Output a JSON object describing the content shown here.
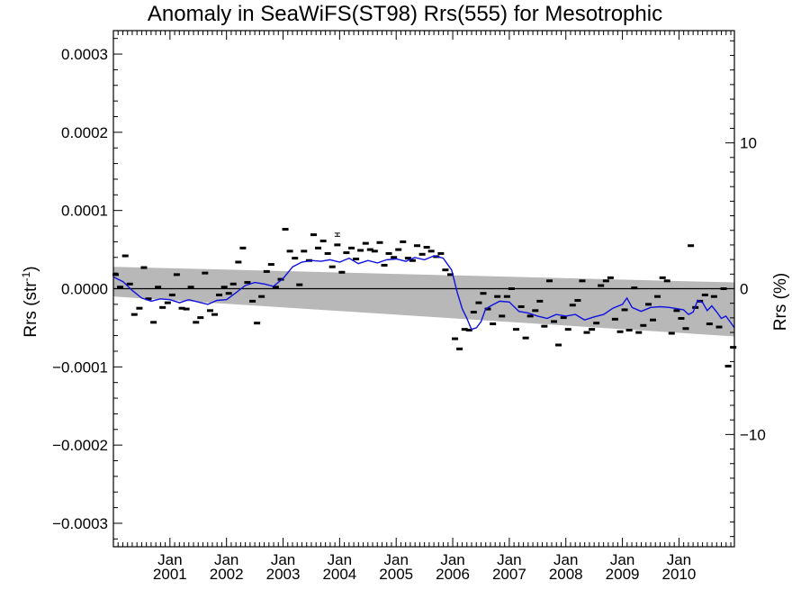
{
  "chart_data": {
    "type": "line",
    "title": "Anomaly in SeaWiFS(ST98) Rrs(555) for Mesotrophic",
    "ylabel_left": "Rrs (str",
    "ylabel_left_sup": "-1",
    "ylabel_left_close": ")",
    "ylabel_right": "Rrs (%)",
    "ylim": [
      -0.00033,
      0.00033
    ],
    "y2lim": [
      -17.7,
      17.7
    ],
    "xlim": [
      2000.0,
      2010.98
    ],
    "yticks_left": [
      {
        "v": 0.0003,
        "label": "0.0003"
      },
      {
        "v": 0.0002,
        "label": "0.0002"
      },
      {
        "v": 0.0001,
        "label": "0.0001"
      },
      {
        "v": 0.0,
        "label": "0.0000"
      },
      {
        "v": -0.0001,
        "label": "−0.0001"
      },
      {
        "v": -0.0002,
        "label": "−0.0002"
      },
      {
        "v": -0.0003,
        "label": "−0.0003"
      }
    ],
    "yticks_right": [
      {
        "v": 10,
        "label": "10"
      },
      {
        "v": 0,
        "label": "0"
      },
      {
        "v": -10,
        "label": "−10"
      }
    ],
    "xticks": [
      {
        "v": 2001.0,
        "label1": "Jan",
        "label2": "2001"
      },
      {
        "v": 2002.0,
        "label1": "Jan",
        "label2": "2002"
      },
      {
        "v": 2003.0,
        "label1": "Jan",
        "label2": "2003"
      },
      {
        "v": 2004.0,
        "label1": "Jan",
        "label2": "2004"
      },
      {
        "v": 2005.0,
        "label1": "Jan",
        "label2": "2005"
      },
      {
        "v": 2006.0,
        "label1": "Jan",
        "label2": "2006"
      },
      {
        "v": 2007.0,
        "label1": "Jan",
        "label2": "2007"
      },
      {
        "v": 2008.0,
        "label1": "Jan",
        "label2": "2008"
      },
      {
        "v": 2009.0,
        "label1": "Jan",
        "label2": "2009"
      },
      {
        "v": 2010.0,
        "label1": "Jan",
        "label2": "2010"
      }
    ],
    "band": {
      "color": "#b8b8b8",
      "x": [
        2000.0,
        2010.98
      ],
      "upper": [
        2.8e-05,
        8e-06
      ],
      "lower": [
        -1e-05,
        -6.1e-05
      ]
    },
    "zero_line": 0,
    "series": [
      {
        "kind": "markers",
        "color": "#000000",
        "x": [
          2000.04,
          2000.12,
          2000.21,
          2000.29,
          2000.37,
          2000.46,
          2000.54,
          2000.62,
          2000.71,
          2000.79,
          2000.87,
          2000.96,
          2001.04,
          2001.12,
          2001.21,
          2001.29,
          2001.37,
          2001.46,
          2001.54,
          2001.62,
          2001.71,
          2001.79,
          2001.87,
          2001.96,
          2002.04,
          2002.12,
          2002.21,
          2002.29,
          2002.37,
          2002.46,
          2002.54,
          2002.62,
          2002.71,
          2002.79,
          2002.87,
          2002.96,
          2003.04,
          2003.12,
          2003.21,
          2003.29,
          2003.37,
          2003.46,
          2003.54,
          2003.62,
          2003.71,
          2003.79,
          2003.87,
          2003.96,
          2004.04,
          2004.12,
          2004.21,
          2004.29,
          2004.37,
          2004.46,
          2004.54,
          2004.62,
          2004.71,
          2004.79,
          2004.87,
          2004.96,
          2005.04,
          2005.12,
          2005.21,
          2005.29,
          2005.37,
          2005.46,
          2005.54,
          2005.62,
          2005.71,
          2005.79,
          2005.87,
          2005.96,
          2006.04,
          2006.12,
          2006.21,
          2006.29,
          2006.37,
          2006.46,
          2006.54,
          2006.62,
          2006.71,
          2006.79,
          2006.87,
          2006.96,
          2007.04,
          2007.12,
          2007.21,
          2007.29,
          2007.37,
          2007.46,
          2007.54,
          2007.62,
          2007.71,
          2007.79,
          2007.87,
          2007.96,
          2008.04,
          2008.12,
          2008.21,
          2008.29,
          2008.37,
          2008.46,
          2008.54,
          2008.62,
          2008.71,
          2008.79,
          2008.87,
          2008.96,
          2009.04,
          2009.12,
          2009.21,
          2009.29,
          2009.37,
          2009.46,
          2009.54,
          2009.62,
          2009.71,
          2009.79,
          2009.87,
          2009.96,
          2010.04,
          2010.12,
          2010.21,
          2010.29,
          2010.37,
          2010.46,
          2010.54,
          2010.62,
          2010.71,
          2010.79,
          2010.87,
          2010.96
        ],
        "y": [
          1.8e-05,
          2e-06,
          4.2e-05,
          6e-06,
          -3.3e-05,
          -2.5e-05,
          2.7e-05,
          -1.3e-05,
          -4.3e-05,
          2e-06,
          -2.4e-05,
          -1.8e-05,
          -8e-06,
          1.8e-05,
          -2.5e-05,
          -2.6e-05,
          2e-06,
          -4.3e-05,
          -3.7e-05,
          2e-05,
          -2.8e-05,
          -3.3e-05,
          -8e-06,
          2e-06,
          -6e-06,
          6e-06,
          3.4e-05,
          5.2e-05,
          8e-06,
          -1.6e-05,
          -4.4e-05,
          -1e-05,
          2.2e-05,
          3.1e-05,
          2e-06,
          1.2e-05,
          7.6e-05,
          4.8e-05,
          3.9e-05,
          5e-06,
          4.8e-05,
          3.6e-05,
          6.9e-05,
          5.2e-05,
          6.1e-05,
          4.5e-05,
          2.8e-05,
          5.6e-05,
          2.1e-05,
          4.6e-05,
          5.2e-05,
          3.8e-05,
          4.9e-05,
          5.8e-05,
          5e-05,
          4.8e-05,
          5.9e-05,
          3e-05,
          4.5e-05,
          4e-05,
          5e-05,
          6e-05,
          3.9e-05,
          3.6e-05,
          5.5e-05,
          4.4e-05,
          5.3e-05,
          4.8e-05,
          4.1e-05,
          4.5e-05,
          2.4e-05,
          1.8e-05,
          -6.4e-05,
          -7.7e-05,
          -5.2e-05,
          -5.3e-05,
          -3e-05,
          -1.8e-05,
          -6e-06,
          -2.6e-05,
          -4.5e-05,
          -1e-05,
          -3.5e-05,
          -1e-05,
          0.0,
          -5.2e-05,
          -2.3e-05,
          -6.3e-05,
          -3.5e-05,
          -2.8e-05,
          -1.6e-05,
          -4.8e-05,
          1e-05,
          -4.2e-05,
          -7.2e-05,
          -3.7e-05,
          -5.2e-05,
          -2.1e-05,
          -1.5e-05,
          1e-05,
          -5.6e-05,
          -5.2e-05,
          -4.4e-05,
          4e-06,
          1e-05,
          1.4e-05,
          -3.9e-05,
          -5.5e-05,
          -2.7e-05,
          -5.3e-05,
          1e-06,
          -5.6e-05,
          -4.7e-05,
          -2e-05,
          -4e-05,
          -1e-05,
          1.4e-05,
          1e-05,
          -5.7e-05,
          -2.8e-05,
          -3.8e-05,
          -5.1e-05,
          5.5e-05,
          -2.4e-05,
          -1.6e-05,
          -8e-06,
          -4.5e-05,
          -1e-05,
          -4.9e-05,
          0.0,
          -9.9e-05,
          -7.5e-05
        ]
      },
      {
        "kind": "line",
        "color": "#1010e0",
        "x": [
          2000.0,
          2000.17,
          2000.33,
          2000.5,
          2000.67,
          2000.83,
          2001.0,
          2001.17,
          2001.33,
          2001.5,
          2001.67,
          2001.83,
          2002.0,
          2002.17,
          2002.33,
          2002.5,
          2002.67,
          2002.83,
          2003.0,
          2003.17,
          2003.33,
          2003.5,
          2003.67,
          2003.83,
          2004.0,
          2004.17,
          2004.33,
          2004.5,
          2004.67,
          2004.83,
          2005.0,
          2005.17,
          2005.33,
          2005.5,
          2005.67,
          2005.83,
          2005.98,
          2006.08,
          2006.17,
          2006.25,
          2006.33,
          2006.42,
          2006.5,
          2006.58,
          2006.67,
          2006.83,
          2007.0,
          2007.17,
          2007.33,
          2007.5,
          2007.67,
          2007.83,
          2008.0,
          2008.17,
          2008.33,
          2008.5,
          2008.67,
          2008.83,
          2009.0,
          2009.08,
          2009.17,
          2009.33,
          2009.5,
          2009.67,
          2009.83,
          2010.0,
          2010.08,
          2010.17,
          2010.25,
          2010.33,
          2010.42,
          2010.5,
          2010.58,
          2010.67,
          2010.75,
          2010.83,
          2010.98
        ],
        "y": [
          1.5e-05,
          9e-06,
          -2e-06,
          -1.2e-05,
          -1.6e-05,
          -1.3e-05,
          -1.4e-05,
          -1.8e-05,
          -1.4e-05,
          -1.7e-05,
          -2e-05,
          -1.5e-05,
          -1.4e-05,
          -5e-06,
          4e-06,
          8e-06,
          6e-06,
          3e-06,
          1.3e-05,
          2.8e-05,
          3.4e-05,
          3.6e-05,
          3.5e-05,
          3.7e-05,
          3.4e-05,
          3.9e-05,
          3.2e-05,
          3.6e-05,
          3.3e-05,
          3.7e-05,
          3.8e-05,
          3.5e-05,
          4e-05,
          3.7e-05,
          4.2e-05,
          3.9e-05,
          2.4e-05,
          -5e-06,
          -2.6e-05,
          -3.8e-05,
          -5.2e-05,
          -5e-05,
          -4.2e-05,
          -2.6e-05,
          -2.2e-05,
          -1.6e-05,
          -1.7e-05,
          -2.9e-05,
          -3.1e-05,
          -3.5e-05,
          -3.8e-05,
          -3.3e-05,
          -3.5e-05,
          -3.3e-05,
          -4e-05,
          -3.6e-05,
          -3.3e-05,
          -2.5e-05,
          -2e-05,
          -1.2e-05,
          -2.4e-05,
          -2.9e-05,
          -2.4e-05,
          -2.3e-05,
          -2.4e-05,
          -2.6e-05,
          -2.7e-05,
          -3.3e-05,
          -3e-05,
          -1.5e-05,
          -1.8e-05,
          -2.8e-05,
          -2.2e-05,
          -3e-05,
          -3.8e-05,
          -3.5e-05,
          -5e-05
        ]
      }
    ],
    "errorbar": {
      "x": 2003.96,
      "y": 6.9e-05,
      "err": 2e-06
    }
  }
}
